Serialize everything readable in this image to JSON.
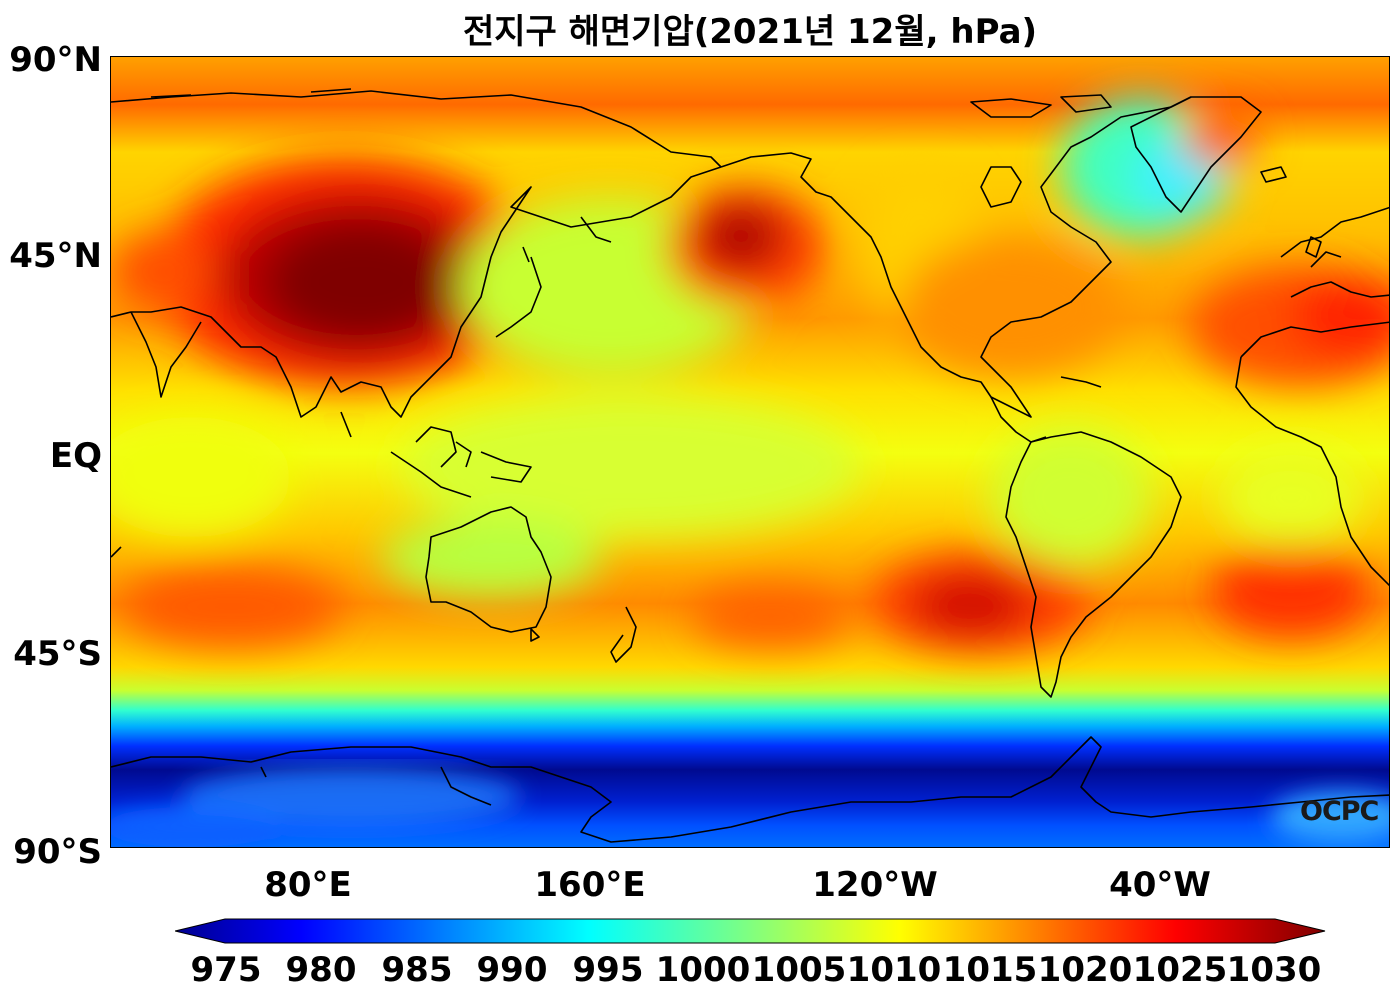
{
  "title": "전지구 해면기압(2021년 12월, hPa)",
  "y_axis": {
    "ticks": [
      "90°N",
      "45°N",
      "EQ",
      "45°S",
      "90°S"
    ]
  },
  "x_axis": {
    "ticks": [
      "80°E",
      "160°E",
      "120°W",
      "40°W"
    ]
  },
  "colorbar": {
    "ticks": [
      "975",
      "980",
      "985",
      "990",
      "995",
      "1000",
      "1005",
      "1010",
      "1015",
      "1020",
      "1025",
      "1030"
    ],
    "colormap": "jet",
    "extend": "both"
  },
  "watermark": "OCPC",
  "colors": {
    "low": "#00007f",
    "mid_low": "#0080ff",
    "mid": "#7fff7f",
    "mid_high": "#ffff00",
    "high": "#ff4000",
    "extreme": "#7f0000"
  }
}
